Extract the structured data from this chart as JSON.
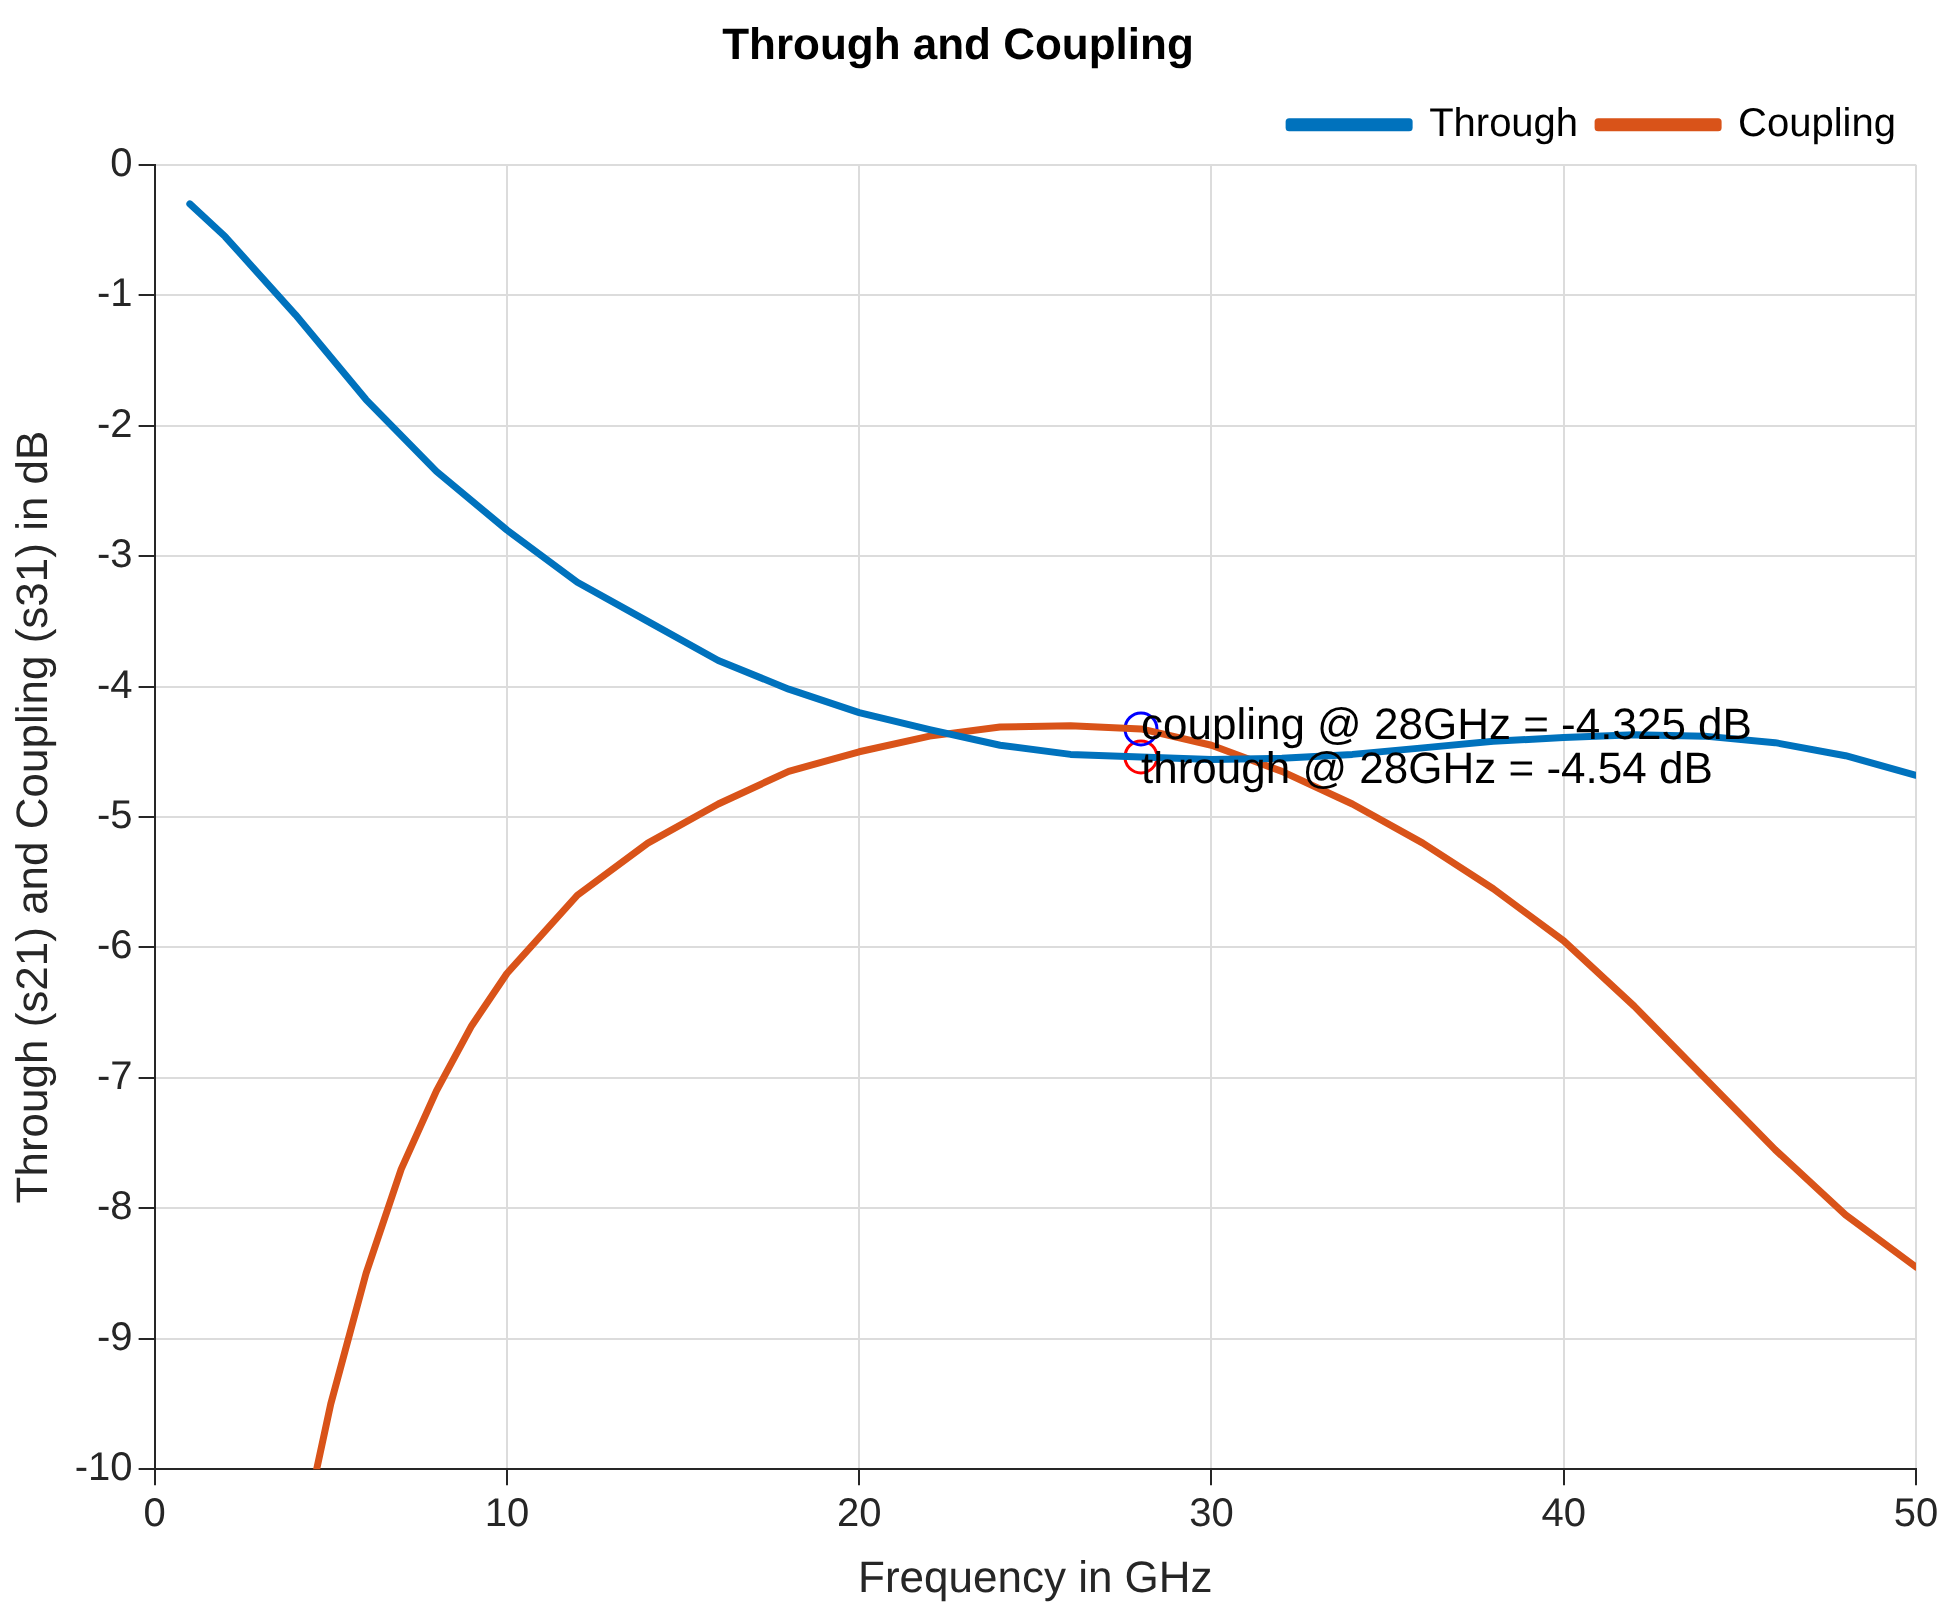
{
  "chart_data": {
    "type": "line",
    "title": "Through and Coupling",
    "xlabel": "Frequency in GHz",
    "ylabel": "Through (s21) and Coupling (s31) in dB",
    "xlim": [
      0,
      50
    ],
    "xticks": [
      0,
      10,
      20,
      30,
      40,
      50
    ],
    "ylim": [
      -10,
      0
    ],
    "yticks": [
      -10,
      -9,
      -8,
      -7,
      -6,
      -5,
      -4,
      -3,
      -2,
      -1,
      0
    ],
    "grid": true,
    "legend": "top right",
    "line_style": "solid",
    "series": [
      {
        "name": "Through",
        "color": "#0072bd",
        "marker": "none",
        "x": [
          1,
          2,
          4,
          6,
          8,
          10,
          12,
          14,
          16,
          18,
          20,
          22,
          24,
          26,
          28,
          30,
          32,
          34,
          36,
          38,
          40,
          42,
          44,
          46,
          48,
          50
        ],
        "values": [
          -0.3,
          -0.55,
          -1.15,
          -1.8,
          -2.35,
          -2.8,
          -3.2,
          -3.5,
          -3.8,
          -4.02,
          -4.2,
          -4.33,
          -4.45,
          -4.52,
          -4.54,
          -4.56,
          -4.55,
          -4.52,
          -4.47,
          -4.42,
          -4.39,
          -4.37,
          -4.38,
          -4.43,
          -4.53,
          -4.68
        ]
      },
      {
        "name": "Coupling",
        "color": "#d95319",
        "marker": "none",
        "x": [
          4.6,
          5,
          6,
          7,
          8,
          9,
          10,
          12,
          14,
          16,
          18,
          20,
          22,
          24,
          26,
          28,
          30,
          32,
          34,
          36,
          38,
          40,
          42,
          44,
          46,
          48,
          50
        ],
        "values": [
          -10,
          -9.5,
          -8.5,
          -7.7,
          -7.1,
          -6.6,
          -6.2,
          -5.6,
          -5.2,
          -4.9,
          -4.65,
          -4.5,
          -4.38,
          -4.31,
          -4.3,
          -4.325,
          -4.45,
          -4.65,
          -4.9,
          -5.2,
          -5.55,
          -5.95,
          -6.45,
          -7,
          -7.55,
          -8.05,
          -8.45
        ]
      },
      {
        "type": "scatter",
        "color": "#0000ff",
        "marker": "circle",
        "x": [
          28
        ],
        "values": [
          -4.325
        ]
      },
      {
        "type": "scatter",
        "color": "#ff0000",
        "marker": "circle",
        "x": [
          28
        ],
        "values": [
          -4.54
        ]
      }
    ],
    "annotations": [
      {
        "text": "coupling @ 28GHz = -4.325 dB",
        "x": 28,
        "y": -4.325
      },
      {
        "text": "through @ 28GHz = -4.54 dB",
        "x": 28,
        "y": -4.54
      }
    ]
  }
}
